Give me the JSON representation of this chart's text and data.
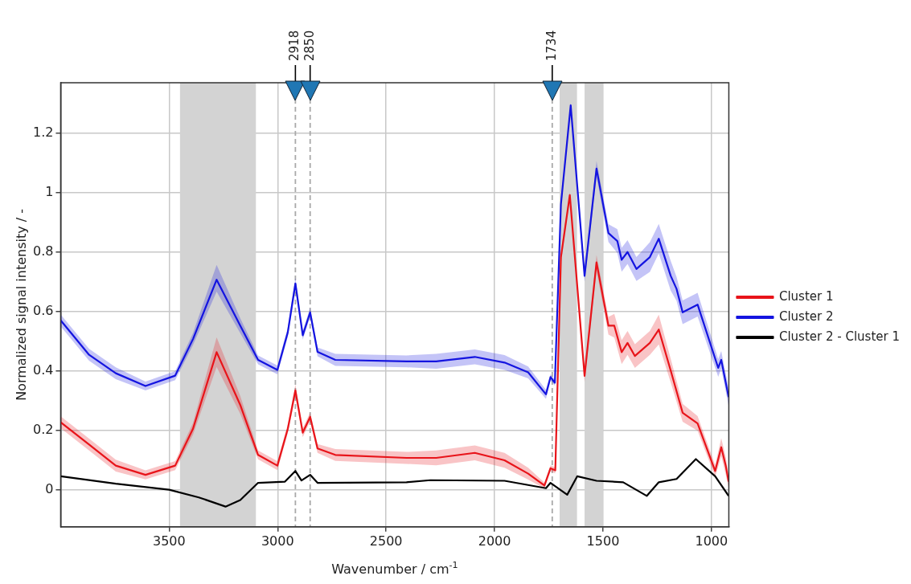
{
  "chart_data": {
    "type": "line",
    "xlabel": "Wavenumber / cm$^{-1}$",
    "ylabel": "Normalized signal intensity / -",
    "xlim": [
      4000,
      920
    ],
    "xticks": [
      3500,
      3000,
      2500,
      2000,
      1500,
      1000
    ],
    "ylim": [
      -0.125,
      1.37
    ],
    "yticks": [
      0.0,
      0.2,
      0.4,
      0.6,
      0.8,
      1.0,
      1.2
    ],
    "grid": true,
    "legend": "right",
    "line_style": "solid",
    "marker": "none",
    "series": [
      {
        "name": "Cluster 1",
        "color": "#e8141a",
        "x": [
          4000,
          3869,
          3746,
          3609,
          3472,
          3390,
          3281,
          3172,
          3090,
          3001,
          2953,
          2918,
          2884,
          2850,
          2816,
          2734,
          2406,
          2269,
          2091,
          1954,
          1845,
          1770,
          1742,
          1720,
          1694,
          1653,
          1585,
          1530,
          1475,
          1448,
          1414,
          1387,
          1353,
          1284,
          1243,
          1188,
          1133,
          1064,
          983,
          955,
          934,
          921
        ],
        "values": [
          0.227,
          0.152,
          0.081,
          0.05,
          0.081,
          0.205,
          0.463,
          0.285,
          0.117,
          0.081,
          0.205,
          0.334,
          0.192,
          0.245,
          0.139,
          0.117,
          0.107,
          0.107,
          0.124,
          0.099,
          0.054,
          0.014,
          0.072,
          0.065,
          0.783,
          0.992,
          0.383,
          0.765,
          0.552,
          0.552,
          0.463,
          0.494,
          0.45,
          0.494,
          0.539,
          0.401,
          0.259,
          0.223,
          0.063,
          0.143,
          0.08,
          0.027
        ],
        "lower": [
          0.207,
          0.132,
          0.061,
          0.035,
          0.066,
          0.185,
          0.413,
          0.255,
          0.102,
          0.066,
          0.19,
          0.314,
          0.177,
          0.23,
          0.124,
          0.097,
          0.087,
          0.082,
          0.099,
          0.074,
          0.034,
          0.004,
          0.062,
          0.055,
          0.763,
          0.982,
          0.363,
          0.74,
          0.522,
          0.512,
          0.423,
          0.454,
          0.41,
          0.454,
          0.489,
          0.361,
          0.229,
          0.198,
          0.043,
          0.113,
          0.05,
          0.007
        ],
        "upper": [
          0.247,
          0.172,
          0.101,
          0.065,
          0.096,
          0.225,
          0.513,
          0.315,
          0.132,
          0.096,
          0.22,
          0.354,
          0.207,
          0.26,
          0.154,
          0.137,
          0.127,
          0.132,
          0.149,
          0.124,
          0.074,
          0.024,
          0.082,
          0.075,
          0.803,
          1.002,
          0.403,
          0.79,
          0.582,
          0.592,
          0.503,
          0.534,
          0.49,
          0.534,
          0.589,
          0.441,
          0.289,
          0.248,
          0.083,
          0.173,
          0.11,
          0.047
        ]
      },
      {
        "name": "Cluster 2",
        "color": "#1414e0",
        "x": [
          4000,
          3869,
          3746,
          3609,
          3472,
          3390,
          3281,
          3172,
          3090,
          3001,
          2953,
          2918,
          2884,
          2850,
          2816,
          2734,
          2406,
          2269,
          2091,
          1954,
          1845,
          1763,
          1742,
          1722,
          1694,
          1649,
          1585,
          1530,
          1475,
          1434,
          1414,
          1387,
          1346,
          1284,
          1243,
          1188,
          1161,
          1133,
          1064,
          969,
          955,
          921
        ],
        "values": [
          0.57,
          0.454,
          0.392,
          0.349,
          0.384,
          0.507,
          0.707,
          0.552,
          0.437,
          0.403,
          0.53,
          0.694,
          0.52,
          0.597,
          0.464,
          0.437,
          0.432,
          0.432,
          0.447,
          0.428,
          0.395,
          0.321,
          0.379,
          0.36,
          0.961,
          1.294,
          0.72,
          1.081,
          0.864,
          0.837,
          0.774,
          0.8,
          0.743,
          0.783,
          0.845,
          0.72,
          0.676,
          0.597,
          0.623,
          0.41,
          0.437,
          0.312
        ],
        "lower": [
          0.55,
          0.434,
          0.372,
          0.334,
          0.369,
          0.487,
          0.667,
          0.527,
          0.422,
          0.388,
          0.515,
          0.674,
          0.505,
          0.582,
          0.449,
          0.417,
          0.412,
          0.407,
          0.422,
          0.403,
          0.375,
          0.306,
          0.369,
          0.35,
          0.941,
          1.284,
          0.7,
          1.056,
          0.834,
          0.797,
          0.734,
          0.76,
          0.703,
          0.733,
          0.795,
          0.67,
          0.636,
          0.557,
          0.583,
          0.38,
          0.407,
          0.282
        ],
        "upper": [
          0.59,
          0.474,
          0.412,
          0.364,
          0.399,
          0.527,
          0.757,
          0.577,
          0.452,
          0.418,
          0.545,
          0.714,
          0.535,
          0.612,
          0.479,
          0.457,
          0.452,
          0.457,
          0.472,
          0.453,
          0.415,
          0.336,
          0.389,
          0.37,
          0.981,
          1.304,
          0.74,
          1.106,
          0.894,
          0.877,
          0.814,
          0.84,
          0.783,
          0.833,
          0.895,
          0.77,
          0.716,
          0.637,
          0.663,
          0.44,
          0.467,
          0.342
        ]
      },
      {
        "name": "Cluster 2 - Cluster 1",
        "color": "#000000",
        "x": [
          4000,
          3746,
          3500,
          3363,
          3240,
          3172,
          3090,
          2966,
          2918,
          2890,
          2850,
          2816,
          2406,
          2296,
          1954,
          1763,
          1742,
          1665,
          1619,
          1530,
          1407,
          1298,
          1243,
          1161,
          1072,
          983,
          921
        ],
        "values": [
          0.045,
          0.02,
          0.0,
          -0.026,
          -0.057,
          -0.035,
          0.023,
          0.027,
          0.063,
          0.031,
          0.05,
          0.023,
          0.025,
          0.032,
          0.03,
          0.005,
          0.023,
          -0.017,
          0.045,
          0.03,
          0.025,
          -0.021,
          0.025,
          0.036,
          0.103,
          0.045,
          -0.021
        ]
      }
    ],
    "bands": [
      {
        "axis": "x",
        "from": 3450,
        "to": 3100,
        "color": "#d3d3d3"
      },
      {
        "axis": "x",
        "from": 1700,
        "to": 1620,
        "color": "#d3d3d3"
      },
      {
        "axis": "x",
        "from": 1585,
        "to": 1500,
        "color": "#d3d3d3"
      }
    ],
    "ref_lines": [
      {
        "axis": "x",
        "value": 2918,
        "label": "2918",
        "color": "#a9a9a9",
        "line_style": "dashed"
      },
      {
        "axis": "x",
        "value": 2850,
        "label": "2850",
        "color": "#a9a9a9",
        "line_style": "dashed"
      },
      {
        "axis": "x",
        "value": 1734,
        "label": "1734",
        "color": "#a9a9a9",
        "line_style": "dashed"
      }
    ]
  }
}
